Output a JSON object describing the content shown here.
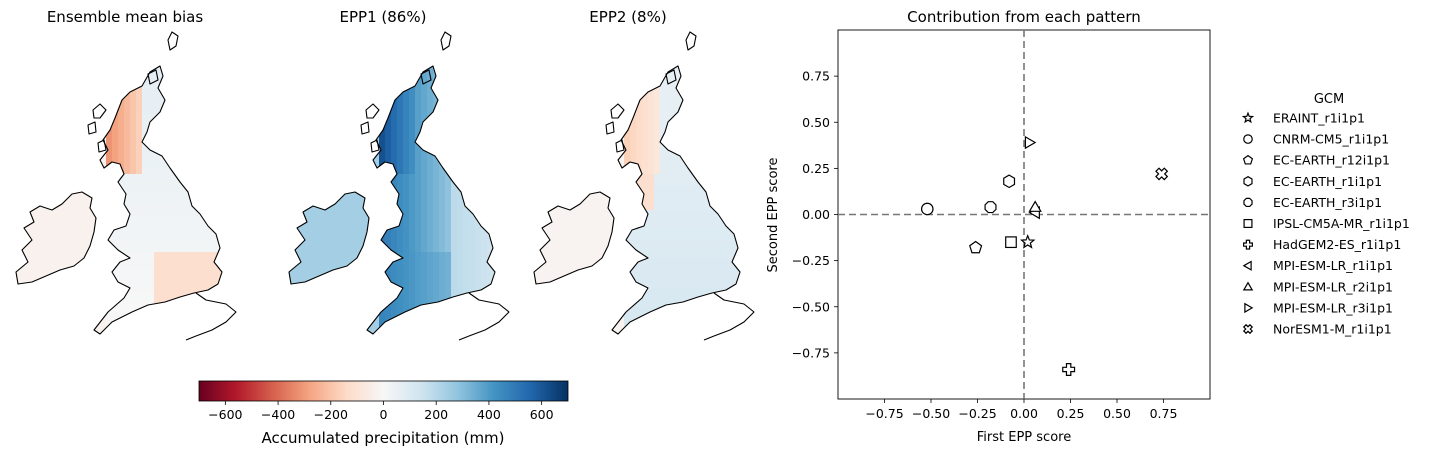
{
  "maps": [
    {
      "title": "Ensemble mean bias",
      "pattern": "bias"
    },
    {
      "title": "EPP1 (86%)",
      "pattern": "epp1"
    },
    {
      "title": "EPP2 (8%)",
      "pattern": "epp2"
    }
  ],
  "colorbar": {
    "label": "Accumulated precipitation (mm)",
    "range": [
      -700,
      700
    ],
    "ticks": [
      -600,
      -400,
      -200,
      0,
      200,
      400,
      600
    ],
    "tick_labels": [
      "−600",
      "−400",
      "−200",
      "0",
      "200",
      "400",
      "600"
    ],
    "colormap": "RdBu",
    "stops": [
      "#67001f",
      "#b2182b",
      "#d6604d",
      "#f4a582",
      "#fddbc7",
      "#f7f7f7",
      "#d1e5f0",
      "#92c5de",
      "#4393c3",
      "#2166ac",
      "#053061"
    ]
  },
  "chart_data": {
    "type": "scatter",
    "title": "Contribution from each pattern",
    "xlabel": "First EPP score",
    "ylabel": "Second EPP score",
    "xlim": [
      -1.0,
      1.0
    ],
    "ylim": [
      -1.0,
      1.0
    ],
    "ticks": [
      -0.75,
      -0.5,
      -0.25,
      0.0,
      0.25,
      0.5,
      0.75
    ],
    "tick_labels": [
      "−0.75",
      "−0.50",
      "−0.25",
      "0.00",
      "0.25",
      "0.50",
      "0.75"
    ],
    "reference_lines": {
      "x": 0,
      "y": 0,
      "style": "dashed",
      "color": "#777777"
    },
    "grid": false,
    "legend_title": "GCM",
    "legend_position": "right, outside",
    "series": [
      {
        "name": "ERAINT_r1i1p1",
        "marker": "star",
        "x": 0.02,
        "y": -0.15
      },
      {
        "name": "CNRM-CM5_r1i1p1",
        "marker": "circle",
        "x": -0.52,
        "y": 0.03
      },
      {
        "name": "EC-EARTH_r12i1p1",
        "marker": "pentagon",
        "x": -0.26,
        "y": -0.18
      },
      {
        "name": "EC-EARTH_r1i1p1",
        "marker": "hexagon",
        "x": -0.08,
        "y": 0.18
      },
      {
        "name": "EC-EARTH_r3i1p1",
        "marker": "octagon",
        "x": -0.18,
        "y": 0.04
      },
      {
        "name": "IPSL-CM5A-MR_r1i1p1",
        "marker": "square",
        "x": -0.07,
        "y": -0.15
      },
      {
        "name": "HadGEM2-ES_r1i1p1",
        "marker": "plus",
        "x": 0.24,
        "y": -0.84
      },
      {
        "name": "MPI-ESM-LR_r1i1p1",
        "marker": "triangle-left",
        "x": 0.06,
        "y": 0.01
      },
      {
        "name": "MPI-ESM-LR_r2i1p1",
        "marker": "triangle-up",
        "x": 0.06,
        "y": 0.04
      },
      {
        "name": "MPI-ESM-LR_r3i1p1",
        "marker": "triangle-right",
        "x": 0.03,
        "y": 0.39
      },
      {
        "name": "NorESM1-M_r1i1p1",
        "marker": "x-filled",
        "x": 0.74,
        "y": 0.22
      }
    ]
  }
}
